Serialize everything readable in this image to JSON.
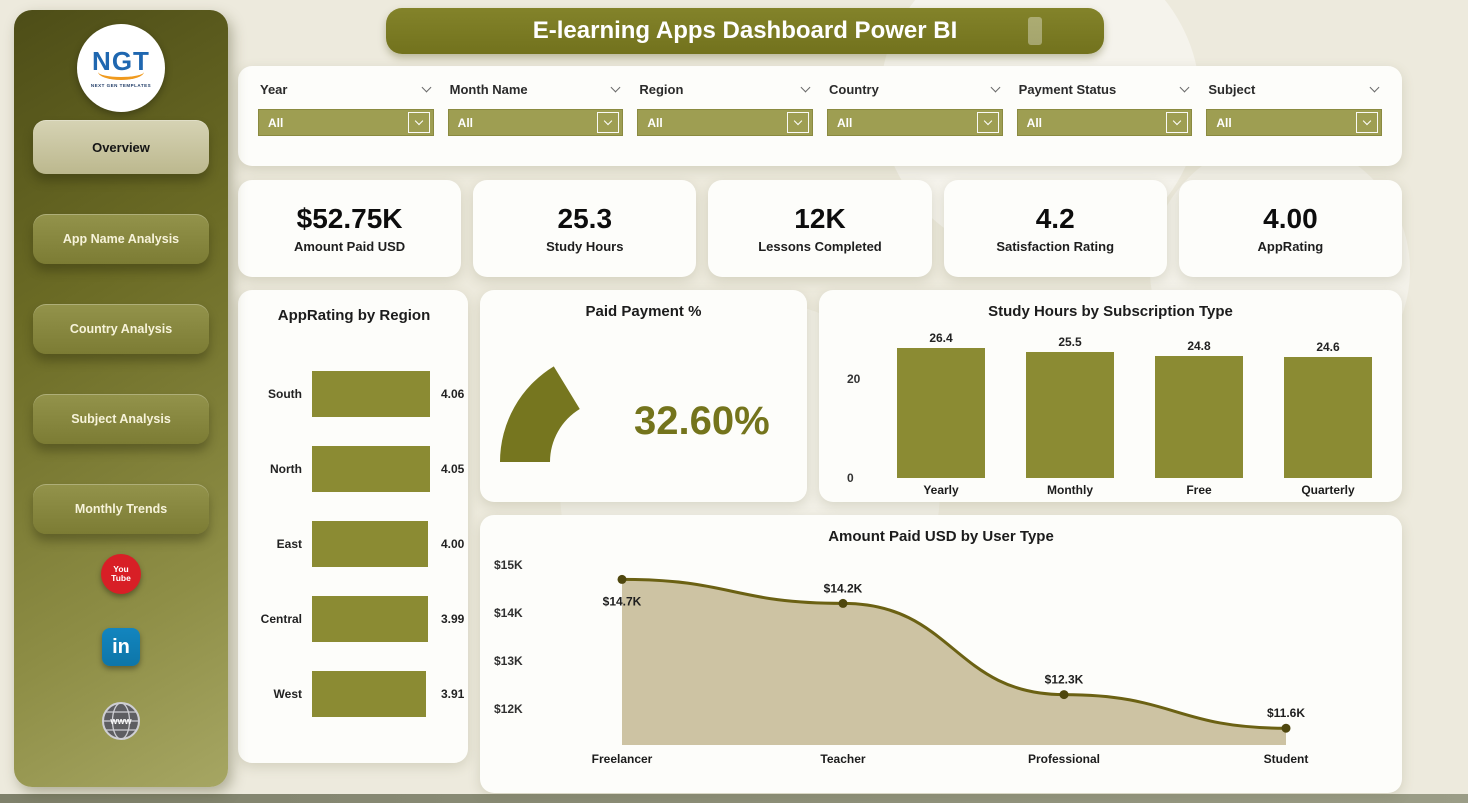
{
  "colors": {
    "olive": "#76761f",
    "olive_bar": "#8b8b33",
    "line_color": "#6b6113",
    "dot_color": "#4f470e",
    "area_fill": "#cdc3a3",
    "banner": "#72721d",
    "filter_box": "#9e9e52",
    "youtube_red": "#d81f26",
    "linkedin_blue": "#0e76a8"
  },
  "sidebar": {
    "logo_text": "NGT",
    "logo_subtext": "NEXT GEN TEMPLATES",
    "nav_items": [
      {
        "label": "Overview",
        "active": true
      },
      {
        "label": "App Name Analysis",
        "active": false
      },
      {
        "label": "Country Analysis",
        "active": false
      },
      {
        "label": "Subject Analysis",
        "active": false
      },
      {
        "label": "Monthly Trends",
        "active": false
      }
    ],
    "social": [
      {
        "name": "youtube",
        "text_top": "You",
        "text_bottom": "Tube"
      },
      {
        "name": "linkedin",
        "text": "in"
      },
      {
        "name": "website",
        "text": "WWW"
      }
    ]
  },
  "header": {
    "title": "E-learning Apps Dashboard Power BI"
  },
  "filters": [
    {
      "label": "Year",
      "value": "All"
    },
    {
      "label": "Month Name",
      "value": "All"
    },
    {
      "label": "Region",
      "value": "All"
    },
    {
      "label": "Country",
      "value": "All"
    },
    {
      "label": "Payment Status",
      "value": "All"
    },
    {
      "label": "Subject",
      "value": "All"
    }
  ],
  "kpis": [
    {
      "value": "$52.75K",
      "label": "Amount Paid USD"
    },
    {
      "value": "25.3",
      "label": "Study Hours"
    },
    {
      "value": "12K",
      "label": "Lessons Completed"
    },
    {
      "value": "4.2",
      "label": "Satisfaction Rating"
    },
    {
      "value": "4.00",
      "label": "AppRating"
    }
  ],
  "chart_data": [
    {
      "id": "app_rating_by_region",
      "type": "bar",
      "orientation": "horizontal",
      "title": "AppRating by Region",
      "categories": [
        "South",
        "North",
        "East",
        "Central",
        "West"
      ],
      "values": [
        4.06,
        4.05,
        4.0,
        3.99,
        3.91
      ],
      "value_labels": [
        "4.06",
        "4.05",
        "4.00",
        "3.99",
        "3.91"
      ],
      "xlim": [
        0,
        4.06
      ],
      "grid": false
    },
    {
      "id": "paid_payment_pct",
      "type": "gauge",
      "title": "Paid Payment %",
      "value": 32.6,
      "max": 100,
      "display": "32.60%"
    },
    {
      "id": "study_hours_by_subscription",
      "type": "bar",
      "orientation": "vertical",
      "title": "Study Hours by Subscription Type",
      "categories": [
        "Yearly",
        "Monthly",
        "Free",
        "Quarterly"
      ],
      "values": [
        26.4,
        25.5,
        24.8,
        24.6
      ],
      "value_labels": [
        "26.4",
        "25.5",
        "24.8",
        "24.6"
      ],
      "yticks": [
        0,
        20
      ],
      "ylim": [
        0,
        30
      ],
      "grid": false
    },
    {
      "id": "amount_paid_by_user_type",
      "type": "line",
      "title": "Amount Paid USD by User Type",
      "categories": [
        "Freelancer",
        "Teacher",
        "Professional",
        "Student"
      ],
      "values": [
        14.7,
        14.2,
        12.3,
        11.6
      ],
      "point_labels": [
        "$14.7K",
        "$14.2K",
        "$12.3K",
        "$11.6K"
      ],
      "yticks": [
        "$12K",
        "$13K",
        "$14K",
        "$15K"
      ],
      "ytick_values": [
        12,
        13,
        14,
        15
      ],
      "ylim": [
        11.4,
        15.4
      ],
      "area": true,
      "grid": false
    }
  ]
}
